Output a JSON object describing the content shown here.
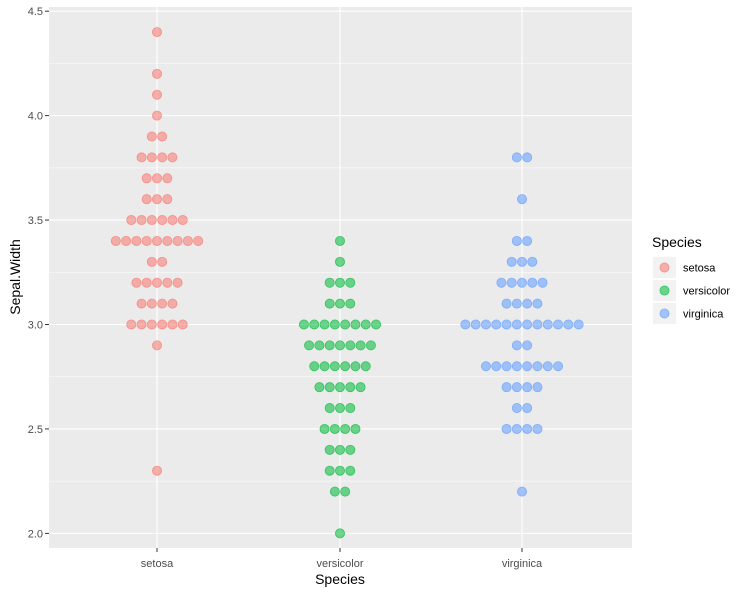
{
  "chart_data": {
    "type": "scatter",
    "subtype": "dotplot",
    "title": "",
    "xlabel": "Species",
    "ylabel": "Sepal.Width",
    "ylim": [
      1.93,
      4.52
    ],
    "y_ticks": [
      "2.0",
      "2.5",
      "3.0",
      "3.5",
      "4.0",
      "4.5"
    ],
    "categories": [
      "setosa",
      "versicolor",
      "virginica"
    ],
    "grid": true,
    "legend": {
      "title": "Species",
      "position": "right",
      "entries": [
        "setosa",
        "versicolor",
        "virginica"
      ]
    },
    "colors": {
      "setosa": "#F8766D",
      "versicolor": "#00BA38",
      "virginica": "#619CFF",
      "panel": "#EBEBEB",
      "grid": "#FFFFFF"
    },
    "series": [
      {
        "name": "setosa",
        "counts": [
          {
            "y": 2.3,
            "n": 1
          },
          {
            "y": 2.9,
            "n": 1
          },
          {
            "y": 3.0,
            "n": 6
          },
          {
            "y": 3.1,
            "n": 4
          },
          {
            "y": 3.2,
            "n": 5
          },
          {
            "y": 3.3,
            "n": 2
          },
          {
            "y": 3.4,
            "n": 9
          },
          {
            "y": 3.5,
            "n": 6
          },
          {
            "y": 3.6,
            "n": 3
          },
          {
            "y": 3.7,
            "n": 3
          },
          {
            "y": 3.8,
            "n": 4
          },
          {
            "y": 3.9,
            "n": 2
          },
          {
            "y": 4.0,
            "n": 1
          },
          {
            "y": 4.1,
            "n": 1
          },
          {
            "y": 4.2,
            "n": 1
          },
          {
            "y": 4.4,
            "n": 1
          }
        ]
      },
      {
        "name": "versicolor",
        "counts": [
          {
            "y": 2.0,
            "n": 1
          },
          {
            "y": 2.2,
            "n": 2
          },
          {
            "y": 2.3,
            "n": 3
          },
          {
            "y": 2.4,
            "n": 3
          },
          {
            "y": 2.5,
            "n": 4
          },
          {
            "y": 2.6,
            "n": 3
          },
          {
            "y": 2.7,
            "n": 5
          },
          {
            "y": 2.8,
            "n": 6
          },
          {
            "y": 2.9,
            "n": 7
          },
          {
            "y": 3.0,
            "n": 8
          },
          {
            "y": 3.1,
            "n": 3
          },
          {
            "y": 3.2,
            "n": 3
          },
          {
            "y": 3.3,
            "n": 1
          },
          {
            "y": 3.4,
            "n": 1
          }
        ]
      },
      {
        "name": "virginica",
        "counts": [
          {
            "y": 2.2,
            "n": 1
          },
          {
            "y": 2.5,
            "n": 4
          },
          {
            "y": 2.6,
            "n": 2
          },
          {
            "y": 2.7,
            "n": 4
          },
          {
            "y": 2.8,
            "n": 8
          },
          {
            "y": 2.9,
            "n": 2
          },
          {
            "y": 3.0,
            "n": 12
          },
          {
            "y": 3.1,
            "n": 4
          },
          {
            "y": 3.2,
            "n": 5
          },
          {
            "y": 3.3,
            "n": 3
          },
          {
            "y": 3.4,
            "n": 2
          },
          {
            "y": 3.6,
            "n": 1
          },
          {
            "y": 3.8,
            "n": 2
          }
        ]
      }
    ]
  }
}
